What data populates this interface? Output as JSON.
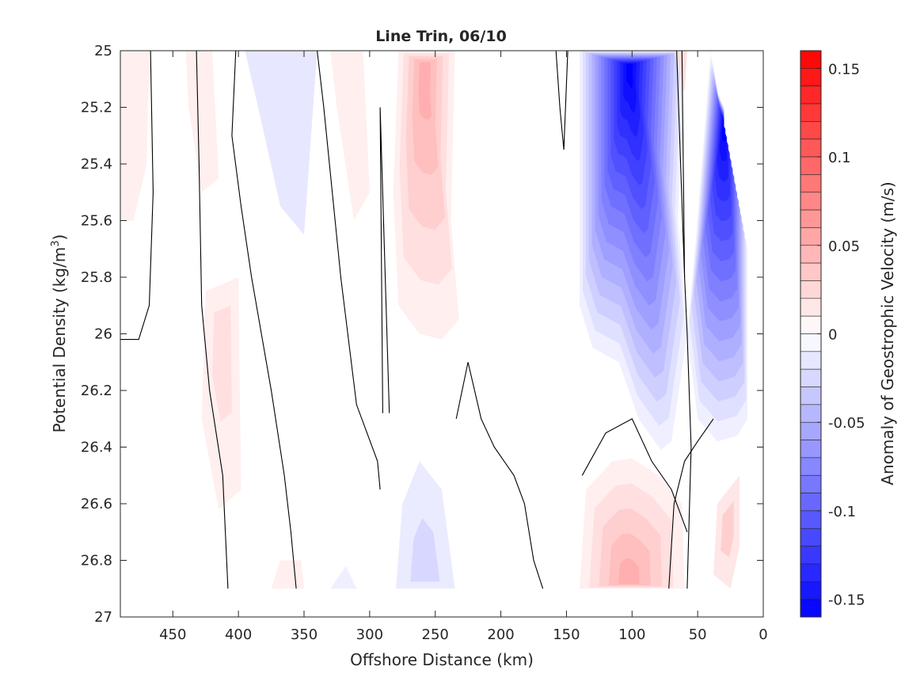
{
  "chart_data": {
    "type": "heatmap",
    "subtype": "filled-contour",
    "title": "Line Trin, 06/10",
    "xlabel": "Offshore Distance (km)",
    "ylabel_prefix": "Potential Density (kg/m",
    "ylabel_sup": "3",
    "ylabel_suffix": ")",
    "xlim": [
      490,
      0
    ],
    "x_reversed": true,
    "ylim": [
      27,
      25
    ],
    "y_reversed": true,
    "xticks": [
      450,
      400,
      350,
      300,
      250,
      200,
      150,
      100,
      50,
      0
    ],
    "yticks": [
      25,
      25.2,
      25.4,
      25.6,
      25.8,
      26,
      26.2,
      26.4,
      26.6,
      26.8,
      27
    ],
    "colorbar": {
      "label": "Anomaly of Geostrophic Velocity (m/s)",
      "lim": [
        -0.16,
        0.16
      ],
      "levels_step": 0.01,
      "ticks": [
        0.15,
        0.1,
        0.05,
        0,
        -0.05,
        -0.1,
        -0.15
      ],
      "tick_labels": [
        "0.15",
        "0.1",
        "0.05",
        "0",
        "-0.05",
        "-0.1",
        "-0.15"
      ],
      "colors": {
        "negative": "#0000ff",
        "zero": "#ffffff",
        "positive": "#ff0000"
      }
    },
    "grid": false,
    "zero_contour_color": "#000000",
    "features": [
      {
        "x": [
          135,
          60
        ],
        "y": [
          25.0,
          26.4
        ],
        "value": -0.16,
        "note": "strong negative core"
      },
      {
        "x": [
          40,
          15
        ],
        "y": [
          25.1,
          26.3
        ],
        "value": -0.16,
        "note": "nearshore negative core"
      },
      {
        "x": [
          275,
          235
        ],
        "y": [
          25.0,
          26.0
        ],
        "value": 0.05,
        "note": "positive"
      },
      {
        "x": [
          140,
          65
        ],
        "y": [
          26.45,
          26.9
        ],
        "value": 0.05,
        "note": "deep positive"
      },
      {
        "x": [
          390,
          340
        ],
        "y": [
          25.0,
          25.65
        ],
        "value": -0.015,
        "note": "weak negative"
      },
      {
        "x": [
          280,
          240
        ],
        "y": [
          26.45,
          26.9
        ],
        "value": -0.025,
        "note": "weak deep negative"
      },
      {
        "x": [
          425,
          405
        ],
        "y": [
          25.8,
          26.55
        ],
        "value": 0.02,
        "note": "weak positive"
      },
      {
        "x": [
          35,
          20
        ],
        "y": [
          26.5,
          26.9
        ],
        "value": 0.03,
        "note": "weak positive"
      }
    ]
  }
}
